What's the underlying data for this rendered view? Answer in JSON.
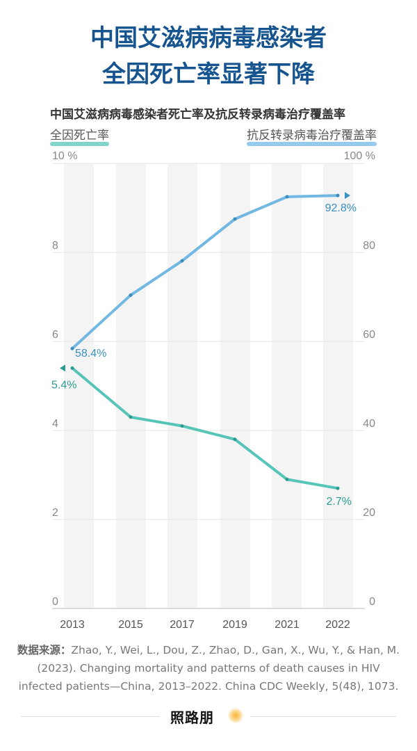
{
  "title_lines": [
    "中国艾滋病病毒感染者",
    "全因死亡率显著下降"
  ],
  "chart_data": {
    "type": "line",
    "title": "中国艾滋病病毒感染者死亡率及抗反转录病毒治疗覆盖率",
    "categories": [
      "2013",
      "2015",
      "2017",
      "2019",
      "2021",
      "2022"
    ],
    "left_axis": {
      "label": "全因死亡率",
      "unit_label": "10 %",
      "ylim": [
        0,
        10
      ],
      "ticks": [
        "0",
        "2",
        "4",
        "6",
        "8"
      ]
    },
    "right_axis": {
      "label": "抗反转录病毒治疗覆盖率",
      "unit_label": "100 %",
      "ylim": [
        0,
        100
      ],
      "ticks": [
        "0",
        "20",
        "40",
        "60",
        "80"
      ]
    },
    "grid": true,
    "series": [
      {
        "name": "全因死亡率",
        "axis": "left",
        "color": "#56c5b8",
        "label_color": "#2e9c90",
        "values": [
          5.4,
          4.3,
          4.1,
          3.8,
          2.9,
          2.7
        ],
        "start_label": "5.4%",
        "end_label": "2.7%"
      },
      {
        "name": "抗反转录病毒治疗覆盖率",
        "axis": "right",
        "color": "#72b8e3",
        "label_color": "#3a8fc0",
        "values": [
          58.4,
          70.4,
          78.1,
          87.5,
          92.5,
          92.8
        ],
        "start_label": "58.4%",
        "end_label": "92.8%"
      }
    ]
  },
  "source": {
    "label": "数据来源：",
    "text": "Zhao, Y., Wei, L., Dou, Z., Zhao, D., Gan, X., Wu, Y., & Han, M. (2023). Changing mortality and patterns of death causes in HIV infected patients—China, 2013–2022. China CDC Weekly, 5(48), 1073."
  },
  "logo": "照路朋"
}
